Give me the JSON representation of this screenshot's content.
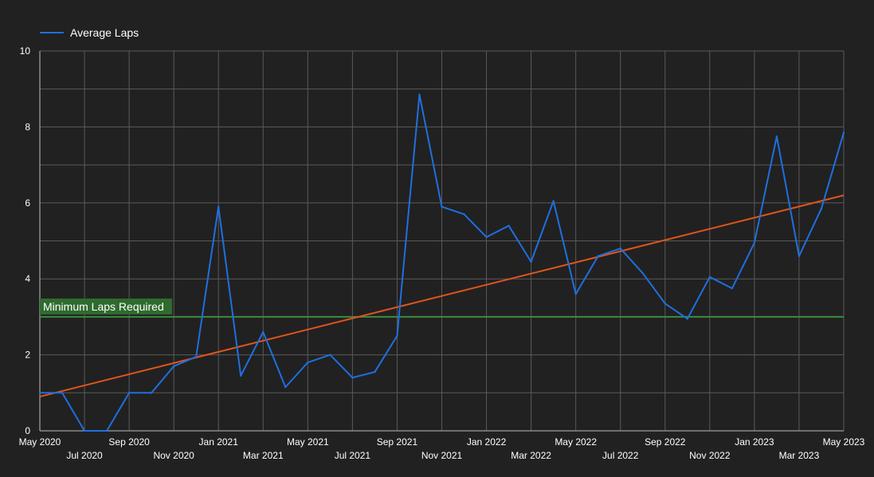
{
  "legend": {
    "label": "Average Laps",
    "color": "#1f6fe0"
  },
  "chart_data": {
    "type": "line",
    "title": "",
    "xlabel": "",
    "ylabel": "",
    "ylim": [
      0,
      10
    ],
    "y_ticks": [
      0,
      2,
      4,
      6,
      8,
      10
    ],
    "x_range": [
      "May 2020",
      "May 2023"
    ],
    "x_tick_labels_row1": [
      "May 2020",
      "Sep 2020",
      "Jan 2021",
      "May 2021",
      "Sep 2021",
      "Jan 2022",
      "May 2022",
      "Sep 2022",
      "Jan 2023",
      "May 2023"
    ],
    "x_tick_labels_row2": [
      "Jul 2020",
      "Nov 2020",
      "Mar 2021",
      "Jul 2021",
      "Nov 2021",
      "Mar 2022",
      "Jul 2022",
      "Nov 2022",
      "Mar 2023"
    ],
    "grid": true,
    "legend_position": "top-left",
    "series": [
      {
        "name": "Average Laps",
        "color": "#1f6fe0",
        "x": [
          "May 2020",
          "Jun 2020",
          "Jul 2020",
          "Aug 2020",
          "Sep 2020",
          "Oct 2020",
          "Nov 2020",
          "Dec 2020",
          "Jan 2021",
          "Feb 2021",
          "Mar 2021",
          "Apr 2021",
          "May 2021",
          "Jun 2021",
          "Jul 2021",
          "Aug 2021",
          "Sep 2021",
          "Oct 2021",
          "Nov 2021",
          "Dec 2021",
          "Jan 2022",
          "Feb 2022",
          "Mar 2022",
          "Apr 2022",
          "May 2022",
          "Jun 2022",
          "Jul 2022",
          "Aug 2022",
          "Sep 2022",
          "Oct 2022",
          "Nov 2022",
          "Dec 2022",
          "Jan 2023",
          "Feb 2023",
          "Mar 2023",
          "Apr 2023",
          "May 2023"
        ],
        "values": [
          1.0,
          1.0,
          0.0,
          0.0,
          1.0,
          1.0,
          1.7,
          1.95,
          5.9,
          1.45,
          2.6,
          1.15,
          1.8,
          2.0,
          1.4,
          1.55,
          2.5,
          8.85,
          5.9,
          5.7,
          5.1,
          5.4,
          4.45,
          6.05,
          3.6,
          4.6,
          4.8,
          4.15,
          3.35,
          2.95,
          4.05,
          3.75,
          4.95,
          7.75,
          4.6,
          5.85,
          7.85
        ]
      }
    ],
    "trendline": {
      "color": "#e0541f",
      "start": 0.9,
      "end": 6.2
    },
    "reference_line": {
      "label": "Minimum Laps Required",
      "value": 3,
      "color": "#3c8c3c"
    }
  }
}
